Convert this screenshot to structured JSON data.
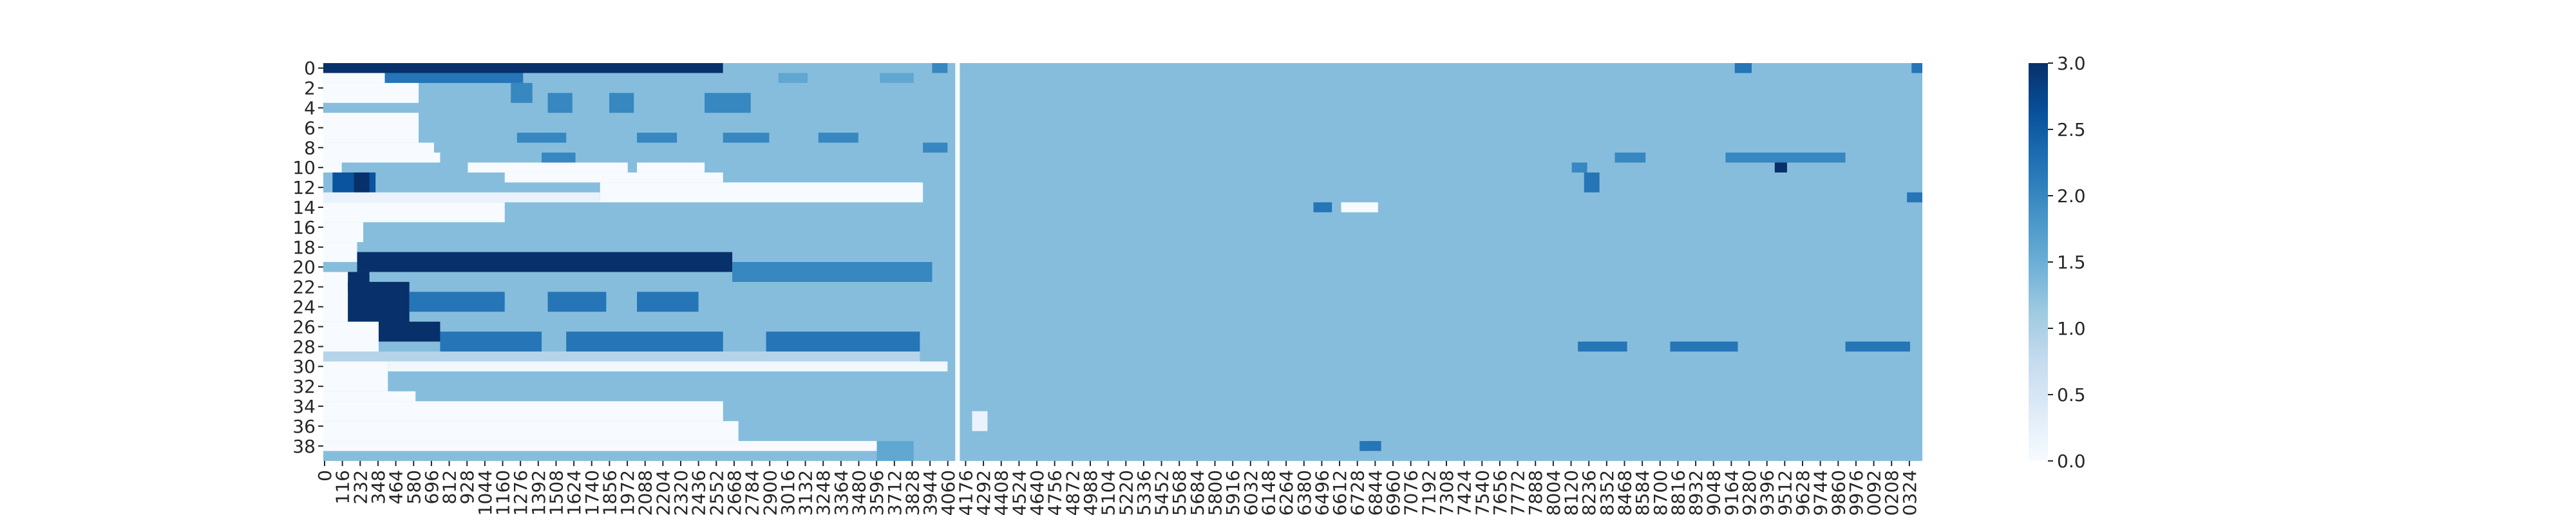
{
  "chart_data": {
    "type": "heatmap",
    "title": "",
    "xlabel": "",
    "ylabel": "",
    "x_tick_labels": [
      "0",
      "116",
      "232",
      "348",
      "464",
      "580",
      "696",
      "812",
      "928",
      "1044",
      "1160",
      "1276",
      "1392",
      "1508",
      "1624",
      "1740",
      "1856",
      "1972",
      "2088",
      "2204",
      "2320",
      "2436",
      "2552",
      "2668",
      "2784",
      "2900",
      "3016",
      "3132",
      "3248",
      "3364",
      "3480",
      "3596",
      "3712",
      "3828",
      "3944",
      "4060",
      "4176",
      "4292",
      "4408",
      "4524",
      "4640",
      "4756",
      "4872",
      "4988",
      "5104",
      "5220",
      "5336",
      "5452",
      "5568",
      "5684",
      "5800",
      "5916",
      "6032",
      "6148",
      "6264",
      "6380",
      "6496",
      "6612",
      "6728",
      "6844",
      "6960",
      "7076",
      "7192",
      "7308",
      "7424",
      "7540",
      "7656",
      "7772",
      "7888",
      "8004",
      "8120",
      "8236",
      "8352",
      "8468",
      "8584",
      "8700",
      "8816",
      "8932",
      "9048",
      "9164",
      "9280",
      "9396",
      "9512",
      "9628",
      "9744",
      "9860",
      "9976",
      "0092",
      "0208",
      "0324"
    ],
    "y_tick_labels": [
      "0",
      "2",
      "4",
      "6",
      "8",
      "10",
      "12",
      "14",
      "16",
      "18",
      "20",
      "22",
      "24",
      "26",
      "28",
      "30",
      "32",
      "34",
      "36",
      "38"
    ],
    "n_rows": 40,
    "x_max": 10400,
    "value_range": [
      0,
      3
    ],
    "colorbar": {
      "tick_labels": [
        "0.0",
        "0.5",
        "1.0",
        "1.5",
        "2.0",
        "2.5",
        "3.0"
      ],
      "tick_values": [
        0,
        0.5,
        1.0,
        1.5,
        2.0,
        2.5,
        3.0
      ],
      "colormap": "Blues"
    },
    "background_value": 1.3,
    "cell_segments": [
      {
        "rows": [
          0,
          0
        ],
        "x": [
          0,
          2600
        ],
        "value": 3
      },
      {
        "rows": [
          0,
          0
        ],
        "x": [
          2600,
          4060
        ],
        "value": 1.3
      },
      {
        "rows": [
          0,
          0
        ],
        "x": [
          3960,
          4060
        ],
        "value": 2
      },
      {
        "rows": [
          0,
          0
        ],
        "x": [
          9180,
          9290
        ],
        "value": 2.2
      },
      {
        "rows": [
          0,
          0
        ],
        "x": [
          10330,
          10400
        ],
        "value": 2.2
      },
      {
        "rows": [
          1,
          1
        ],
        "x": [
          0,
          400
        ],
        "value": 0
      },
      {
        "rows": [
          1,
          1
        ],
        "x": [
          400,
          1300
        ],
        "value": 2.2
      },
      {
        "rows": [
          1,
          1
        ],
        "x": [
          1300,
          4060
        ],
        "value": 1.3
      },
      {
        "rows": [
          1,
          1
        ],
        "x": [
          2960,
          3150
        ],
        "value": 1.6
      },
      {
        "rows": [
          1,
          1
        ],
        "x": [
          3620,
          3840
        ],
        "value": 1.6
      },
      {
        "rows": [
          2,
          3
        ],
        "x": [
          0,
          620
        ],
        "value": 0
      },
      {
        "rows": [
          2,
          3
        ],
        "x": [
          1220,
          1360
        ],
        "value": 2
      },
      {
        "rows": [
          3,
          4
        ],
        "x": [
          1460,
          1620
        ],
        "value": 2
      },
      {
        "rows": [
          3,
          4
        ],
        "x": [
          1860,
          2020
        ],
        "value": 2
      },
      {
        "rows": [
          3,
          4
        ],
        "x": [
          2480,
          2780
        ],
        "value": 2
      },
      {
        "rows": [
          5,
          7
        ],
        "x": [
          0,
          620
        ],
        "value": 0
      },
      {
        "rows": [
          7,
          7
        ],
        "x": [
          1260,
          1580
        ],
        "value": 2
      },
      {
        "rows": [
          7,
          7
        ],
        "x": [
          2040,
          2300
        ],
        "value": 2
      },
      {
        "rows": [
          7,
          7
        ],
        "x": [
          2600,
          2900
        ],
        "value": 2
      },
      {
        "rows": [
          7,
          7
        ],
        "x": [
          3220,
          3480
        ],
        "value": 2
      },
      {
        "rows": [
          8,
          8
        ],
        "x": [
          0,
          720
        ],
        "value": 0
      },
      {
        "rows": [
          8,
          8
        ],
        "x": [
          3900,
          4060
        ],
        "value": 2
      },
      {
        "rows": [
          9,
          9
        ],
        "x": [
          0,
          760
        ],
        "value": 0
      },
      {
        "rows": [
          9,
          9
        ],
        "x": [
          1420,
          1640
        ],
        "value": 2
      },
      {
        "rows": [
          9,
          9
        ],
        "x": [
          8400,
          8600
        ],
        "value": 2
      },
      {
        "rows": [
          9,
          9
        ],
        "x": [
          9120,
          9900
        ],
        "value": 2
      },
      {
        "rows": [
          10,
          10
        ],
        "x": [
          0,
          120
        ],
        "value": 0
      },
      {
        "rows": [
          10,
          10
        ],
        "x": [
          940,
          1980
        ],
        "value": 0
      },
      {
        "rows": [
          10,
          10
        ],
        "x": [
          2040,
          2480
        ],
        "value": 0
      },
      {
        "rows": [
          10,
          10
        ],
        "x": [
          8120,
          8220
        ],
        "value": 2
      },
      {
        "rows": [
          10,
          10
        ],
        "x": [
          9440,
          9520
        ],
        "value": 3
      },
      {
        "rows": [
          11,
          12
        ],
        "x": [
          60,
          340
        ],
        "value": 2.6
      },
      {
        "rows": [
          11,
          12
        ],
        "x": [
          200,
          300
        ],
        "value": 3
      },
      {
        "rows": [
          11,
          11
        ],
        "x": [
          1180,
          2600
        ],
        "value": 0
      },
      {
        "rows": [
          11,
          12
        ],
        "x": [
          8200,
          8300
        ],
        "value": 2.2
      },
      {
        "rows": [
          12,
          13
        ],
        "x": [
          1800,
          3900
        ],
        "value": 0
      },
      {
        "rows": [
          13,
          13
        ],
        "x": [
          0,
          1800
        ],
        "value": 0.2
      },
      {
        "rows": [
          13,
          13
        ],
        "x": [
          10300,
          10400
        ],
        "value": 2.2
      },
      {
        "rows": [
          14,
          15
        ],
        "x": [
          0,
          1180
        ],
        "value": 0
      },
      {
        "rows": [
          14,
          14
        ],
        "x": [
          6440,
          6560
        ],
        "value": 2.2
      },
      {
        "rows": [
          14,
          14
        ],
        "x": [
          6620,
          6860
        ],
        "value": 0
      },
      {
        "rows": [
          16,
          17
        ],
        "x": [
          0,
          260
        ],
        "value": 0
      },
      {
        "rows": [
          18,
          19
        ],
        "x": [
          0,
          220
        ],
        "value": 0
      },
      {
        "rows": [
          19,
          20
        ],
        "x": [
          220,
          2660
        ],
        "value": 3
      },
      {
        "rows": [
          20,
          21
        ],
        "x": [
          2660,
          3960
        ],
        "value": 2
      },
      {
        "rows": [
          21,
          22
        ],
        "x": [
          60,
          300
        ],
        "value": 3
      },
      {
        "rows": [
          21,
          25
        ],
        "x": [
          0,
          160
        ],
        "value": 0
      },
      {
        "rows": [
          22,
          26
        ],
        "x": [
          160,
          560
        ],
        "value": 3
      },
      {
        "rows": [
          23,
          24
        ],
        "x": [
          560,
          1180
        ],
        "value": 2.2
      },
      {
        "rows": [
          23,
          24
        ],
        "x": [
          1460,
          1840
        ],
        "value": 2.2
      },
      {
        "rows": [
          23,
          24
        ],
        "x": [
          2040,
          2440
        ],
        "value": 2.2
      },
      {
        "rows": [
          26,
          27
        ],
        "x": [
          360,
          760
        ],
        "value": 3
      },
      {
        "rows": [
          26,
          28
        ],
        "x": [
          0,
          360
        ],
        "value": 0
      },
      {
        "rows": [
          27,
          28
        ],
        "x": [
          760,
          1420
        ],
        "value": 2.2
      },
      {
        "rows": [
          27,
          28
        ],
        "x": [
          1580,
          2600
        ],
        "value": 2.2
      },
      {
        "rows": [
          27,
          28
        ],
        "x": [
          2880,
          3880
        ],
        "value": 2.2
      },
      {
        "rows": [
          28,
          28
        ],
        "x": [
          8160,
          8480
        ],
        "value": 2.2
      },
      {
        "rows": [
          28,
          28
        ],
        "x": [
          8760,
          9200
        ],
        "value": 2.2
      },
      {
        "rows": [
          28,
          28
        ],
        "x": [
          9900,
          10320
        ],
        "value": 2.2
      },
      {
        "rows": [
          29,
          29
        ],
        "x": [
          0,
          3880
        ],
        "value": 0.9
      },
      {
        "rows": [
          30,
          30
        ],
        "x": [
          0,
          420
        ],
        "value": 0
      },
      {
        "rows": [
          30,
          30
        ],
        "x": [
          420,
          4060
        ],
        "value": 0.1
      },
      {
        "rows": [
          31,
          32
        ],
        "x": [
          0,
          420
        ],
        "value": 0
      },
      {
        "rows": [
          33,
          33
        ],
        "x": [
          0,
          600
        ],
        "value": 0
      },
      {
        "rows": [
          34,
          35
        ],
        "x": [
          0,
          2600
        ],
        "value": 0
      },
      {
        "rows": [
          36,
          37
        ],
        "x": [
          0,
          2700
        ],
        "value": 0
      },
      {
        "rows": [
          38,
          38
        ],
        "x": [
          0,
          3600
        ],
        "value": 0
      },
      {
        "rows": [
          38,
          38
        ],
        "x": [
          6740,
          6880
        ],
        "value": 2.2
      },
      {
        "rows": [
          38,
          39
        ],
        "x": [
          3600,
          3840
        ],
        "value": 1.6
      },
      {
        "rows": [
          0,
          39
        ],
        "x": [
          4110,
          4140
        ],
        "value": 0
      },
      {
        "rows": [
          35,
          36
        ],
        "x": [
          4220,
          4320
        ],
        "value": 0.2
      }
    ]
  }
}
